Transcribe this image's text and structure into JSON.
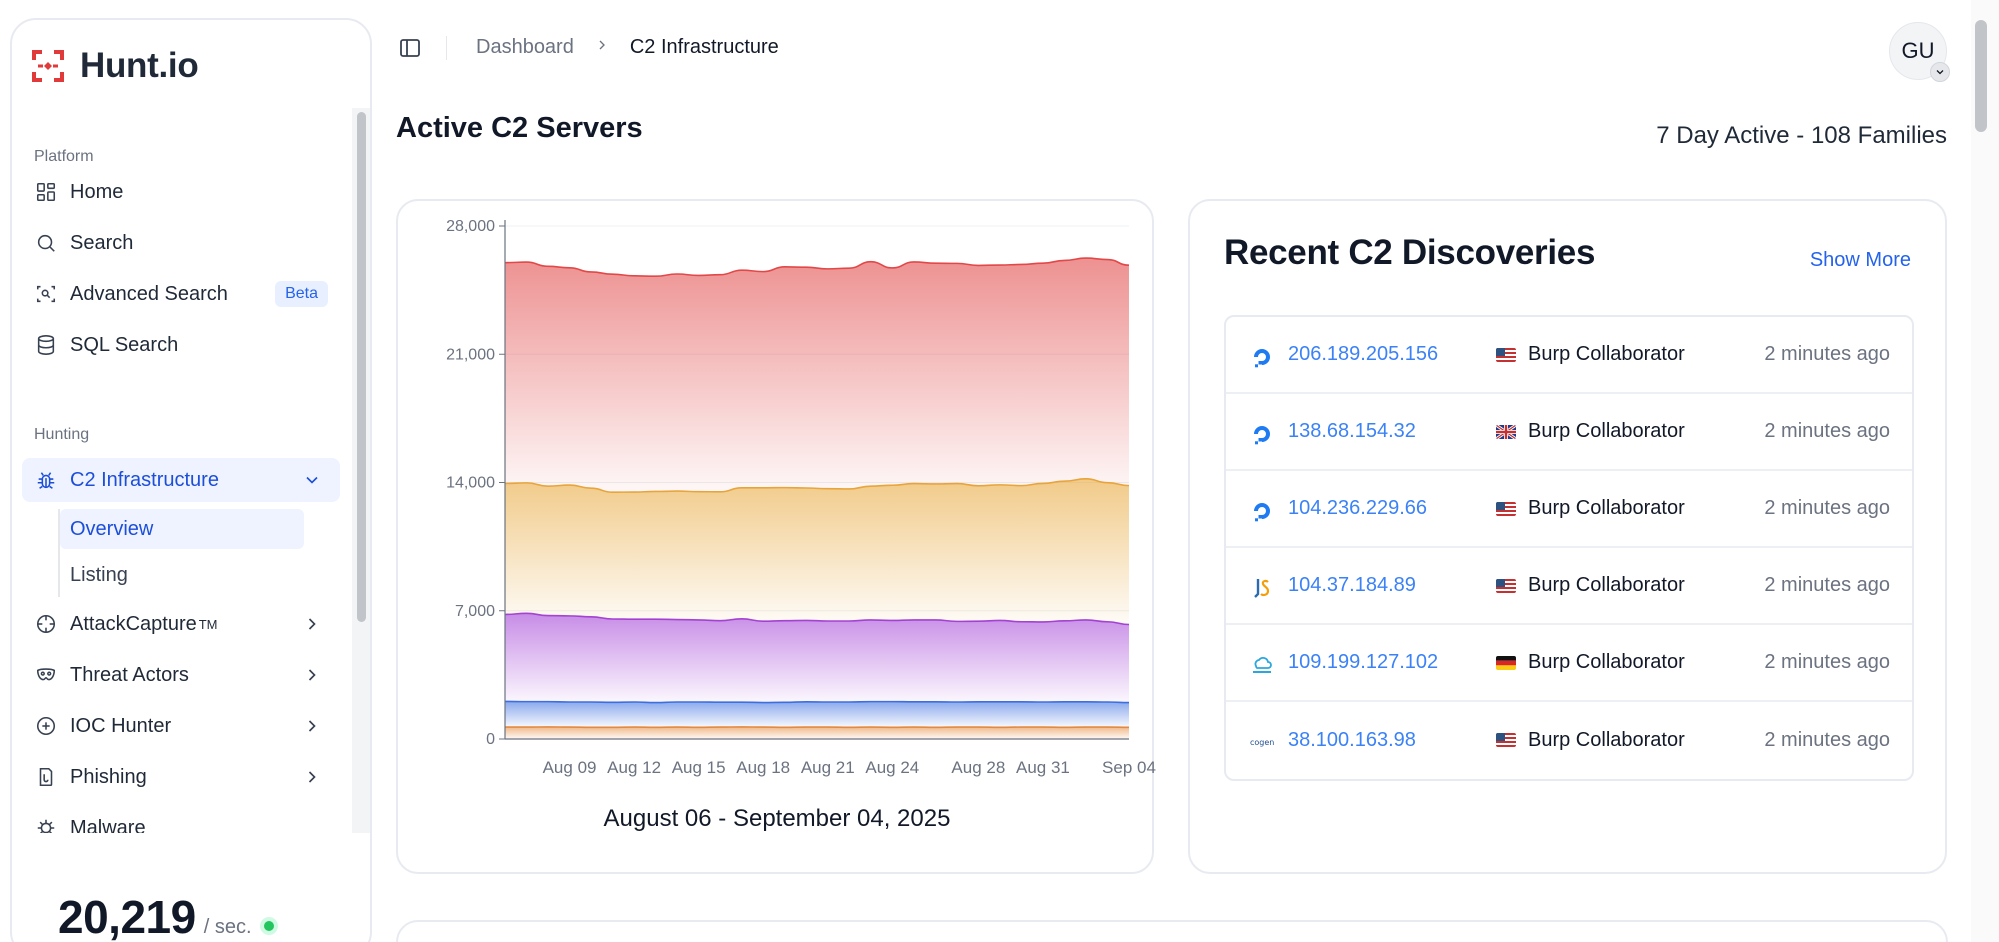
{
  "brand": {
    "name": "Hunt.io"
  },
  "sidebar": {
    "sections": [
      {
        "label": "Platform"
      },
      {
        "label": "Hunting"
      }
    ],
    "items": [
      {
        "label": "Home",
        "icon": "grid-icon"
      },
      {
        "label": "Search",
        "icon": "search-icon"
      },
      {
        "label": "Advanced Search",
        "icon": "scan-search-icon",
        "badge": "Beta"
      },
      {
        "label": "SQL Search",
        "icon": "database-icon"
      },
      {
        "label": "C2 Infrastructure",
        "icon": "bug-icon",
        "expanded": true
      },
      {
        "label": "AttackCapture",
        "icon": "crosshair-icon",
        "sup": "TM"
      },
      {
        "label": "Threat Actors",
        "icon": "mask-icon"
      },
      {
        "label": "IOC Hunter",
        "icon": "plus-circle-icon"
      },
      {
        "label": "Phishing",
        "icon": "fish-hook-icon"
      },
      {
        "label": "Malware",
        "icon": "virus-icon"
      }
    ],
    "subitems": [
      {
        "label": "Overview",
        "active": true
      },
      {
        "label": "Listing",
        "active": false
      }
    ],
    "rate": {
      "value": "20,219",
      "unit": "/ sec."
    }
  },
  "header": {
    "breadcrumb": [
      "Dashboard",
      "C2 Infrastructure"
    ],
    "avatar": "GU"
  },
  "page": {
    "title": "Active C2 Servers",
    "meta": "7 Day Active - 108 Families"
  },
  "chart_data": {
    "type": "area",
    "stacked": true,
    "title": "",
    "xlabel": "",
    "ylabel": "",
    "caption": "August 06 - September 04, 2025",
    "ylim": [
      0,
      28000
    ],
    "yticks": [
      "0",
      "7,000",
      "14,000",
      "21,000",
      "28,000"
    ],
    "xticks": [
      "Aug 09",
      "Aug 12",
      "Aug 15",
      "Aug 18",
      "Aug 21",
      "Aug 24",
      "Aug 28",
      "Aug 31",
      "Sep 04"
    ],
    "x": [
      "Aug 06",
      "Aug 07",
      "Aug 08",
      "Aug 09",
      "Aug 10",
      "Aug 11",
      "Aug 12",
      "Aug 13",
      "Aug 14",
      "Aug 15",
      "Aug 16",
      "Aug 17",
      "Aug 18",
      "Aug 19",
      "Aug 20",
      "Aug 21",
      "Aug 22",
      "Aug 23",
      "Aug 24",
      "Aug 25",
      "Aug 26",
      "Aug 27",
      "Aug 28",
      "Aug 29",
      "Aug 30",
      "Aug 31",
      "Sep 01",
      "Sep 02",
      "Sep 03",
      "Sep 04"
    ],
    "grid": true,
    "legend": "none",
    "colors": [
      "#e8893a",
      "#3b6fe0",
      "#a23fd6",
      "#e8a73a",
      "#e24848"
    ],
    "series": [
      {
        "values": [
          650,
          650,
          660,
          650,
          640,
          640,
          650,
          640,
          650,
          640,
          650,
          660,
          650,
          640,
          650,
          650,
          640,
          650,
          640,
          650,
          640,
          650,
          650,
          640,
          650,
          650,
          640,
          650,
          650,
          640
        ]
      },
      {
        "values": [
          1400,
          1390,
          1380,
          1370,
          1380,
          1360,
          1370,
          1350,
          1370,
          1380,
          1360,
          1350,
          1340,
          1360,
          1380,
          1370,
          1380,
          1390,
          1400,
          1380,
          1390,
          1370,
          1380,
          1390,
          1380,
          1370,
          1390,
          1380,
          1370,
          1350
        ]
      },
      {
        "values": [
          4750,
          4820,
          4700,
          4700,
          4650,
          4550,
          4520,
          4550,
          4500,
          4480,
          4450,
          4550,
          4440,
          4460,
          4440,
          4420,
          4420,
          4460,
          4430,
          4470,
          4470,
          4400,
          4400,
          4440,
          4370,
          4370,
          4420,
          4470,
          4380,
          4260
        ]
      },
      {
        "values": [
          7150,
          7120,
          7060,
          7140,
          7020,
          6920,
          6940,
          6970,
          7010,
          7000,
          7030,
          7150,
          7280,
          7260,
          7230,
          7220,
          7210,
          7300,
          7380,
          7440,
          7420,
          7520,
          7390,
          7400,
          7430,
          7560,
          7620,
          7700,
          7590,
          7580
        ]
      },
      {
        "values": [
          12050,
          12050,
          12000,
          11860,
          11800,
          11900,
          11800,
          11750,
          11850,
          11800,
          11850,
          11880,
          11800,
          12050,
          12050,
          12000,
          12050,
          12250,
          11860,
          12100,
          12050,
          12020,
          12030,
          12000,
          12070,
          12020,
          12050,
          12050,
          12180,
          12030
        ]
      }
    ]
  },
  "discoveries": {
    "title": "Recent C2 Discoveries",
    "show_more": "Show More",
    "rows": [
      {
        "ip": "206.189.205.156",
        "icon": "digitalocean-icon",
        "flag": "us",
        "family": "Burp Collaborator",
        "time": "2 minutes ago"
      },
      {
        "ip": "138.68.154.32",
        "icon": "digitalocean-icon",
        "flag": "gb",
        "family": "Burp Collaborator",
        "time": "2 minutes ago"
      },
      {
        "ip": "104.236.229.66",
        "icon": "digitalocean-icon",
        "flag": "us",
        "family": "Burp Collaborator",
        "time": "2 minutes ago"
      },
      {
        "ip": "104.37.184.89",
        "icon": "hosting-logo-icon",
        "flag": "us",
        "family": "Burp Collaborator",
        "time": "2 minutes ago"
      },
      {
        "ip": "109.199.127.102",
        "icon": "contabo-icon",
        "flag": "de",
        "family": "Burp Collaborator",
        "time": "2 minutes ago"
      },
      {
        "ip": "38.100.163.98",
        "icon": "cogent-icon",
        "flag": "us",
        "family": "Burp Collaborator",
        "time": "2 minutes ago"
      }
    ]
  }
}
